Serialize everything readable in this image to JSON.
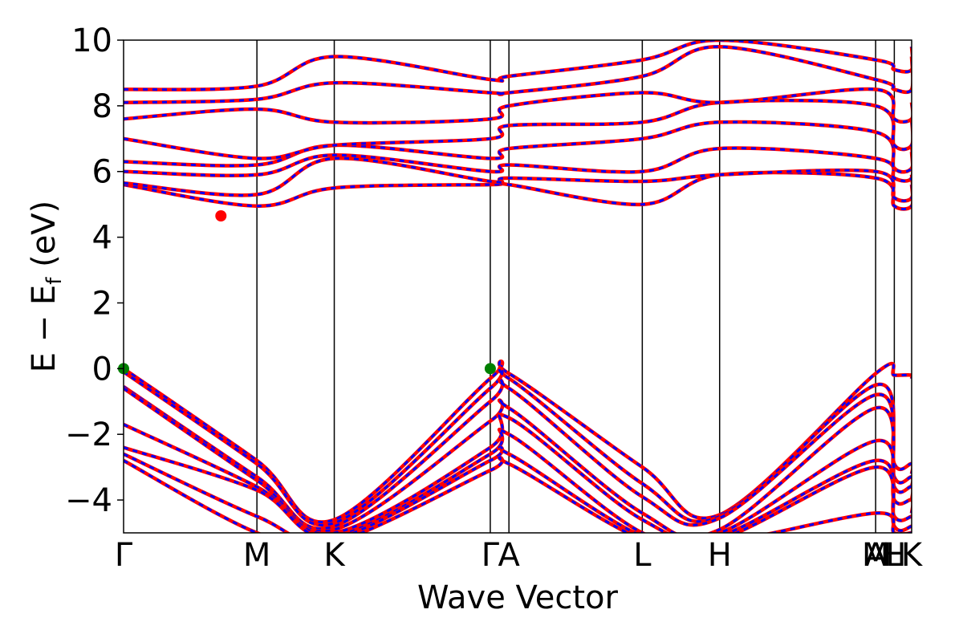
{
  "chart_data": {
    "type": "line",
    "xlabel": "Wave Vector",
    "ylabel": "E − E",
    "ylabel_sub": "f",
    "ylabel_unit": " (eV)",
    "ylim": [
      -5,
      10
    ],
    "xlim": [
      0,
      5.91
    ],
    "y_ticks": [
      -4,
      -2,
      0,
      2,
      4,
      6,
      8,
      10
    ],
    "y_tick_labels": [
      "−4",
      "−2",
      "0",
      "2",
      "4",
      "6",
      "8",
      "10"
    ],
    "k_points": [
      {
        "label": "Γ",
        "x": 0.0
      },
      {
        "label": "M",
        "x": 1.0
      },
      {
        "label": "K",
        "x": 1.58
      },
      {
        "label": "Γ",
        "x": 2.75
      },
      {
        "label": "A",
        "x": 2.89
      },
      {
        "label": "L",
        "x": 3.89
      },
      {
        "label": "H",
        "x": 4.47
      },
      {
        "label": "A",
        "x": 5.64
      },
      {
        "label": "M",
        "x": 5.64
      },
      {
        "label": "L",
        "x": 5.78
      },
      {
        "label": "H",
        "x": 5.78
      },
      {
        "label": "K",
        "x": 5.91
      }
    ],
    "series_styles": [
      {
        "color": "#ff0000",
        "style": "solid"
      },
      {
        "color": "#0000ff",
        "style": "dashed"
      }
    ],
    "vbm": {
      "x": [
        0.0,
        2.75
      ],
      "y": 0.0,
      "color": "#008000"
    },
    "cbm": {
      "x": 0.73,
      "y": 4.65,
      "color": "#ff0000"
    },
    "bands": [
      {
        "valence": true,
        "y": [
          0.0,
          -2.8,
          -4.6,
          -0.3,
          -0.15,
          -3.0,
          -4.45,
          -0.15,
          -0.2,
          -0.2,
          -0.3
        ]
      },
      {
        "valence": true,
        "y": [
          -0.1,
          -2.9,
          -4.7,
          -0.6,
          -0.3,
          -3.5,
          -4.5,
          -0.5,
          -2.9,
          -2.9,
          -3.2
        ]
      },
      {
        "valence": true,
        "y": [
          -0.55,
          -3.3,
          -4.8,
          -1.0,
          -0.6,
          -3.9,
          -4.55,
          -0.8,
          -3.3,
          -3.3,
          -3.6
        ]
      },
      {
        "valence": true,
        "y": [
          -0.6,
          -3.4,
          -4.9,
          -1.6,
          -1.2,
          -4.4,
          -4.9,
          -1.2,
          -3.6,
          -3.6,
          -4.0
        ]
      },
      {
        "valence": true,
        "y": [
          -1.7,
          -3.6,
          -5.0,
          -2.4,
          -1.5,
          -4.6,
          -5.0,
          -2.2,
          -4.0,
          -4.0,
          -4.4
        ]
      },
      {
        "valence": true,
        "y": [
          -2.4,
          -3.7,
          -5.1,
          -2.6,
          -2.0,
          -5.0,
          -5.1,
          -2.8,
          -4.5,
          -4.5,
          -4.5
        ]
      },
      {
        "valence": true,
        "y": [
          -2.6,
          -4.5,
          -5.2,
          -2.8,
          -2.6,
          -5.1,
          -5.2,
          -3.0,
          -4.8,
          -4.8,
          -4.8
        ]
      },
      {
        "valence": true,
        "y": [
          -2.8,
          -5.0,
          -5.3,
          -3.1,
          -2.9,
          -5.2,
          -5.3,
          -4.4,
          -5.0,
          -5.0,
          -5.0
        ]
      },
      {
        "valence": false,
        "y": [
          5.6,
          4.95,
          5.5,
          5.6,
          5.6,
          5.0,
          5.9,
          5.8,
          4.95,
          4.95,
          5.6
        ]
      },
      {
        "valence": false,
        "y": [
          5.65,
          5.3,
          6.4,
          5.7,
          5.8,
          5.7,
          5.9,
          6.0,
          5.2,
          5.2,
          5.9
        ]
      },
      {
        "valence": false,
        "y": [
          6.0,
          5.9,
          6.5,
          6.0,
          6.2,
          6.0,
          6.7,
          6.4,
          5.8,
          5.8,
          6.6
        ]
      },
      {
        "valence": false,
        "y": [
          6.3,
          6.2,
          6.8,
          6.4,
          6.7,
          7.0,
          7.5,
          7.2,
          6.1,
          6.1,
          6.8
        ]
      },
      {
        "valence": false,
        "y": [
          7.0,
          6.4,
          6.8,
          7.0,
          7.4,
          7.5,
          8.1,
          8.0,
          6.8,
          6.8,
          7.6
        ]
      },
      {
        "valence": false,
        "y": [
          7.6,
          7.9,
          7.5,
          7.6,
          8.0,
          8.4,
          8.1,
          8.5,
          7.6,
          7.6,
          8.1
        ]
      },
      {
        "valence": false,
        "y": [
          8.1,
          8.2,
          8.7,
          8.4,
          8.4,
          8.9,
          9.8,
          8.8,
          8.5,
          8.5,
          9.5
        ]
      },
      {
        "valence": false,
        "y": [
          8.5,
          8.6,
          9.5,
          8.8,
          8.9,
          9.4,
          10.0,
          9.4,
          9.1,
          9.1,
          9.8
        ]
      }
    ]
  }
}
